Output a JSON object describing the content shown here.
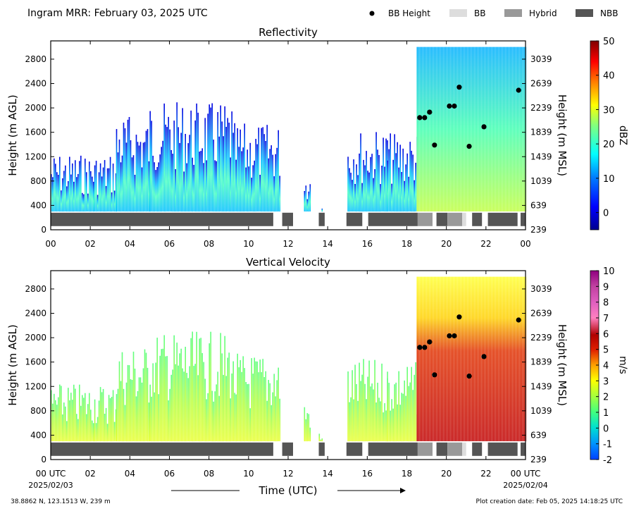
{
  "header": {
    "title": "Ingram MRR:  February 03, 2025 UTC",
    "legend": [
      {
        "label": "BB Height",
        "kind": "dot",
        "color": "#000000"
      },
      {
        "label": "BB",
        "kind": "patch",
        "color": "#dddddd"
      },
      {
        "label": "Hybrid",
        "kind": "patch",
        "color": "#999999"
      },
      {
        "label": "NBB",
        "kind": "patch",
        "color": "#555555"
      }
    ]
  },
  "chart_data": [
    {
      "type": "heatmap",
      "title": "Reflectivity",
      "xlabel": "",
      "ylabel": "Height (m AGL)",
      "y2label": "Height (m MSL)",
      "x_ticks": [
        "00",
        "02",
        "04",
        "06",
        "08",
        "10",
        "12",
        "14",
        "16",
        "18",
        "20",
        "22",
        "00"
      ],
      "xlim_hours": [
        0,
        24
      ],
      "ylim": [
        0,
        3100
      ],
      "y_ticks": [
        0,
        400,
        800,
        1200,
        1600,
        2000,
        2400,
        2800
      ],
      "y2_ticks": [
        "239",
        "639",
        "1039",
        "1439",
        "1839",
        "2239",
        "2639",
        "3039"
      ],
      "colorbar": {
        "label": "dBZ",
        "min": -5,
        "max": 50,
        "ticks": [
          0,
          10,
          20,
          30,
          40,
          50
        ],
        "cmap": "jet"
      },
      "bb_height_points": [
        [
          18.65,
          1840
        ],
        [
          18.9,
          1840
        ],
        [
          19.15,
          1930
        ],
        [
          19.4,
          1390
        ],
        [
          20.15,
          2030
        ],
        [
          20.4,
          2030
        ],
        [
          20.65,
          2340
        ],
        [
          21.15,
          1370
        ],
        [
          21.9,
          1690
        ],
        [
          23.65,
          2290
        ]
      ],
      "classification_bar": [
        {
          "start": 0.0,
          "end": 11.25,
          "class": "NBB"
        },
        {
          "start": 11.7,
          "end": 12.25,
          "class": "NBB"
        },
        {
          "start": 13.55,
          "end": 13.85,
          "class": "NBB"
        },
        {
          "start": 14.95,
          "end": 15.75,
          "class": "NBB"
        },
        {
          "start": 16.05,
          "end": 18.55,
          "class": "NBB"
        },
        {
          "start": 18.55,
          "end": 19.3,
          "class": "Hybrid"
        },
        {
          "start": 19.5,
          "end": 20.05,
          "class": "NBB"
        },
        {
          "start": 20.05,
          "end": 20.8,
          "class": "Hybrid"
        },
        {
          "start": 20.8,
          "end": 21.0,
          "class": "BB"
        },
        {
          "start": 21.3,
          "end": 21.8,
          "class": "NBB"
        },
        {
          "start": 22.1,
          "end": 23.6,
          "class": "NBB"
        },
        {
          "start": 23.75,
          "end": 24.0,
          "class": "NBB"
        }
      ],
      "data_segments": [
        {
          "start": 0.0,
          "end": 2.2,
          "top": 1250
        },
        {
          "start": 2.2,
          "end": 3.3,
          "top": 1250
        },
        {
          "start": 3.3,
          "end": 5.0,
          "top": 1900
        },
        {
          "start": 5.0,
          "end": 9.2,
          "top": 2100
        },
        {
          "start": 9.2,
          "end": 11.6,
          "top": 1750
        },
        {
          "start": 12.8,
          "end": 13.1,
          "top": 1000
        },
        {
          "start": 13.55,
          "end": 13.75,
          "top": 450
        },
        {
          "start": 15.0,
          "end": 17.0,
          "top": 1650
        },
        {
          "start": 17.0,
          "end": 18.5,
          "top": 1600
        },
        {
          "start": 18.5,
          "end": 24.0,
          "top": 3000
        }
      ]
    },
    {
      "type": "heatmap",
      "title": "Vertical Velocity",
      "xlabel": "Time (UTC)",
      "ylabel": "Height (m AGL)",
      "y2label": "Height (m MSL)",
      "x_ticks": [
        "00 UTC",
        "02",
        "04",
        "06",
        "08",
        "10",
        "12",
        "14",
        "16",
        "18",
        "20",
        "22",
        "00 UTC"
      ],
      "x_subticks": {
        "first": "2025/02/03",
        "last": "2025/02/04"
      },
      "xlim_hours": [
        0,
        24
      ],
      "ylim": [
        0,
        3100
      ],
      "y_ticks": [
        0,
        400,
        800,
        1200,
        1600,
        2000,
        2400,
        2800
      ],
      "y2_ticks": [
        "239",
        "639",
        "1039",
        "1439",
        "1839",
        "2239",
        "2639",
        "3039"
      ],
      "colorbar": {
        "label": "m/s",
        "min": -2,
        "max": 10,
        "ticks": [
          -2,
          -1,
          0,
          1,
          2,
          3,
          4,
          5,
          6,
          7,
          8,
          9,
          10
        ],
        "cmap": "velocity"
      },
      "bb_height_points": [
        [
          18.65,
          1840
        ],
        [
          18.9,
          1840
        ],
        [
          19.15,
          1930
        ],
        [
          19.4,
          1390
        ],
        [
          20.15,
          2030
        ],
        [
          20.4,
          2030
        ],
        [
          20.65,
          2340
        ],
        [
          21.15,
          1370
        ],
        [
          21.9,
          1690
        ],
        [
          23.65,
          2290
        ]
      ]
    }
  ],
  "footer": {
    "location": "38.8862 N, 123.1513 W, 239 m",
    "creation": "Plot creation date: Feb 05, 2025 14:18:25 UTC"
  }
}
